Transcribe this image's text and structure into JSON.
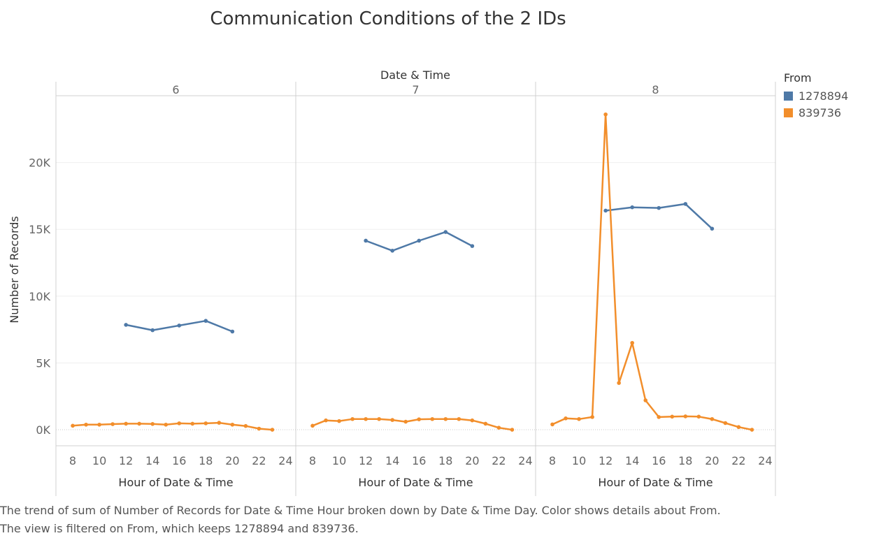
{
  "chart_data": {
    "type": "line",
    "title": "Communication Conditions of the 2 IDs",
    "column_header": "Date & Time",
    "ylabel": "Number of Records",
    "xlabel": "Hour of Date & Time",
    "ylim": [
      -1200,
      25000
    ],
    "xlim": [
      7,
      24.5
    ],
    "x_ticks": [
      8,
      10,
      12,
      14,
      16,
      18,
      20,
      22,
      24
    ],
    "y_ticks": [
      {
        "value": 0,
        "label": "0K"
      },
      {
        "value": 5000,
        "label": "5K"
      },
      {
        "value": 10000,
        "label": "10K"
      },
      {
        "value": 15000,
        "label": "15K"
      },
      {
        "value": 20000,
        "label": "20K"
      }
    ],
    "legend_title": "From",
    "legend_position": "right",
    "panels": [
      {
        "day": "6",
        "series": [
          {
            "name": "1278894",
            "color": "#4e79a7",
            "points": [
              [
                12,
                7850
              ],
              [
                14,
                7450
              ],
              [
                16,
                7800
              ],
              [
                18,
                8150
              ],
              [
                20,
                7350
              ]
            ]
          },
          {
            "name": "839736",
            "color": "#f28e2b",
            "points": [
              [
                8,
                300
              ],
              [
                9,
                380
              ],
              [
                10,
                380
              ],
              [
                11,
                420
              ],
              [
                12,
                450
              ],
              [
                13,
                450
              ],
              [
                14,
                430
              ],
              [
                15,
                380
              ],
              [
                16,
                480
              ],
              [
                17,
                450
              ],
              [
                18,
                480
              ],
              [
                19,
                520
              ],
              [
                20,
                380
              ],
              [
                21,
                280
              ],
              [
                22,
                80
              ],
              [
                23,
                0
              ]
            ]
          }
        ]
      },
      {
        "day": "7",
        "series": [
          {
            "name": "1278894",
            "color": "#4e79a7",
            "points": [
              [
                12,
                14150
              ],
              [
                14,
                13400
              ],
              [
                16,
                14150
              ],
              [
                18,
                14800
              ],
              [
                20,
                13750
              ]
            ]
          },
          {
            "name": "839736",
            "color": "#f28e2b",
            "points": [
              [
                8,
                300
              ],
              [
                9,
                700
              ],
              [
                10,
                650
              ],
              [
                11,
                800
              ],
              [
                12,
                800
              ],
              [
                13,
                800
              ],
              [
                14,
                730
              ],
              [
                15,
                600
              ],
              [
                16,
                780
              ],
              [
                17,
                800
              ],
              [
                18,
                800
              ],
              [
                19,
                800
              ],
              [
                20,
                700
              ],
              [
                21,
                450
              ],
              [
                22,
                150
              ],
              [
                23,
                0
              ]
            ]
          }
        ]
      },
      {
        "day": "8",
        "series": [
          {
            "name": "1278894",
            "color": "#4e79a7",
            "points": [
              [
                12,
                16400
              ],
              [
                14,
                16650
              ],
              [
                16,
                16600
              ],
              [
                18,
                16900
              ],
              [
                20,
                15050
              ]
            ]
          },
          {
            "name": "839736",
            "color": "#f28e2b",
            "points": [
              [
                8,
                400
              ],
              [
                9,
                850
              ],
              [
                10,
                800
              ],
              [
                11,
                950
              ],
              [
                12,
                23600
              ],
              [
                13,
                3500
              ],
              [
                14,
                6500
              ],
              [
                15,
                2200
              ],
              [
                16,
                950
              ],
              [
                17,
                980
              ],
              [
                18,
                1000
              ],
              [
                19,
                980
              ],
              [
                20,
                800
              ],
              [
                21,
                500
              ],
              [
                22,
                200
              ],
              [
                23,
                0
              ]
            ]
          }
        ]
      }
    ]
  },
  "legend": {
    "title": "From",
    "items": [
      {
        "label": "1278894",
        "color": "#4e79a7"
      },
      {
        "label": "839736",
        "color": "#f28e2b"
      }
    ]
  },
  "caption": {
    "line1": "The trend of sum of Number of Records for Date & Time Hour broken down by Date & Time Day.  Color shows details about From.",
    "line2": "The view is filtered on From, which keeps 1278894 and 839736."
  }
}
